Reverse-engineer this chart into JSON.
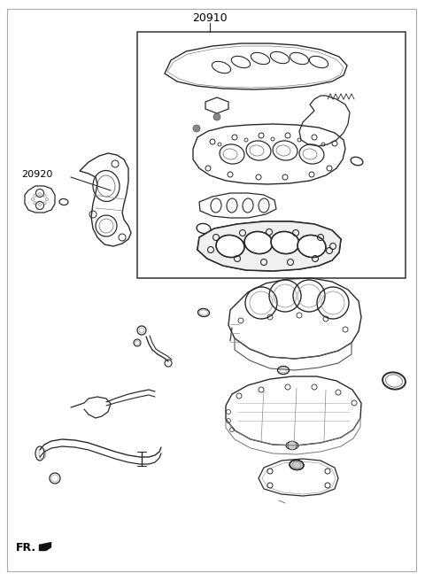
{
  "title": "20910",
  "label_20920": "20920",
  "label_fr": "FR.",
  "bg_color": "#ffffff",
  "lc": "#2a2a2a",
  "figsize": [
    4.8,
    6.56
  ],
  "dpi": 100
}
